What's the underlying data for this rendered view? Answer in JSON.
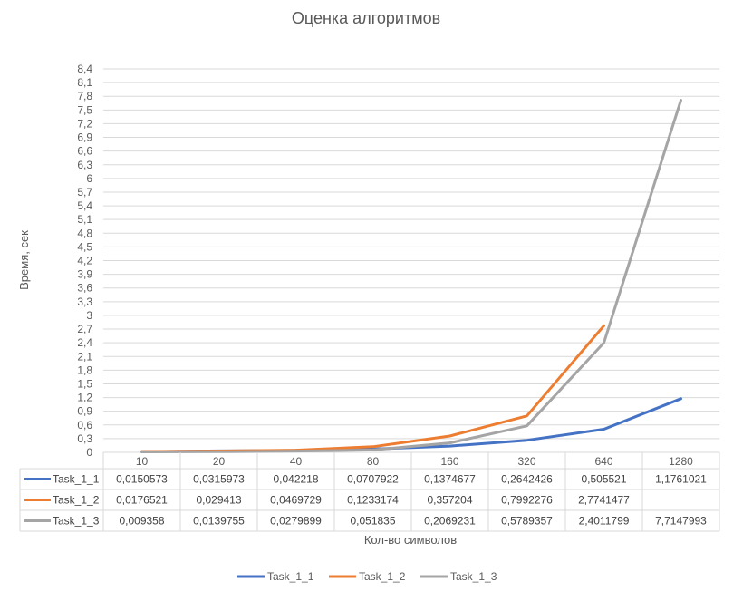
{
  "chart_data": {
    "type": "line",
    "title": "Оценка алгоритмов",
    "xlabel": "Кол-во символов",
    "ylabel": "Время, сек",
    "categories": [
      "10",
      "20",
      "40",
      "80",
      "160",
      "320",
      "640",
      "1280"
    ],
    "ylim": [
      0,
      8.4
    ],
    "ytick_labels": [
      "0",
      "0,3",
      "0,6",
      "0,9",
      "1,2",
      "1,5",
      "1,8",
      "2,1",
      "2,4",
      "2,7",
      "3",
      "3,3",
      "3,6",
      "3,9",
      "4,2",
      "4,5",
      "4,8",
      "5,1",
      "5,4",
      "5,7",
      "6",
      "6,3",
      "6,6",
      "6,9",
      "7,2",
      "7,5",
      "7,8",
      "8,1",
      "8,4"
    ],
    "grid": true,
    "legend_position": "bottom",
    "series": [
      {
        "name": "Task_1_1",
        "color": "#4472c4",
        "values": [
          0.0150573,
          0.0315973,
          0.042218,
          0.0707922,
          0.1374677,
          0.2642426,
          0.505521,
          1.1761021
        ],
        "labels": [
          "0,0150573",
          "0,0315973",
          "0,042218",
          "0,0707922",
          "0,1374677",
          "0,2642426",
          "0,505521",
          "1,1761021"
        ]
      },
      {
        "name": "Task_1_2",
        "color": "#ed7d31",
        "values": [
          0.0176521,
          0.029413,
          0.0469729,
          0.1233174,
          0.357204,
          0.7992276,
          2.7741477,
          null
        ],
        "labels": [
          "0,0176521",
          "0,029413",
          "0,0469729",
          "0,1233174",
          "0,357204",
          "0,7992276",
          "2,7741477",
          ""
        ]
      },
      {
        "name": "Task_1_3",
        "color": "#a5a5a5",
        "values": [
          0.009358,
          0.0139755,
          0.0279899,
          0.051835,
          0.2069231,
          0.5789357,
          2.4011799,
          7.7147993
        ],
        "labels": [
          "0,009358",
          "0,0139755",
          "0,0279899",
          "0,051835",
          "0,2069231",
          "0,5789357",
          "2,4011799",
          "7,7147993"
        ]
      }
    ]
  }
}
